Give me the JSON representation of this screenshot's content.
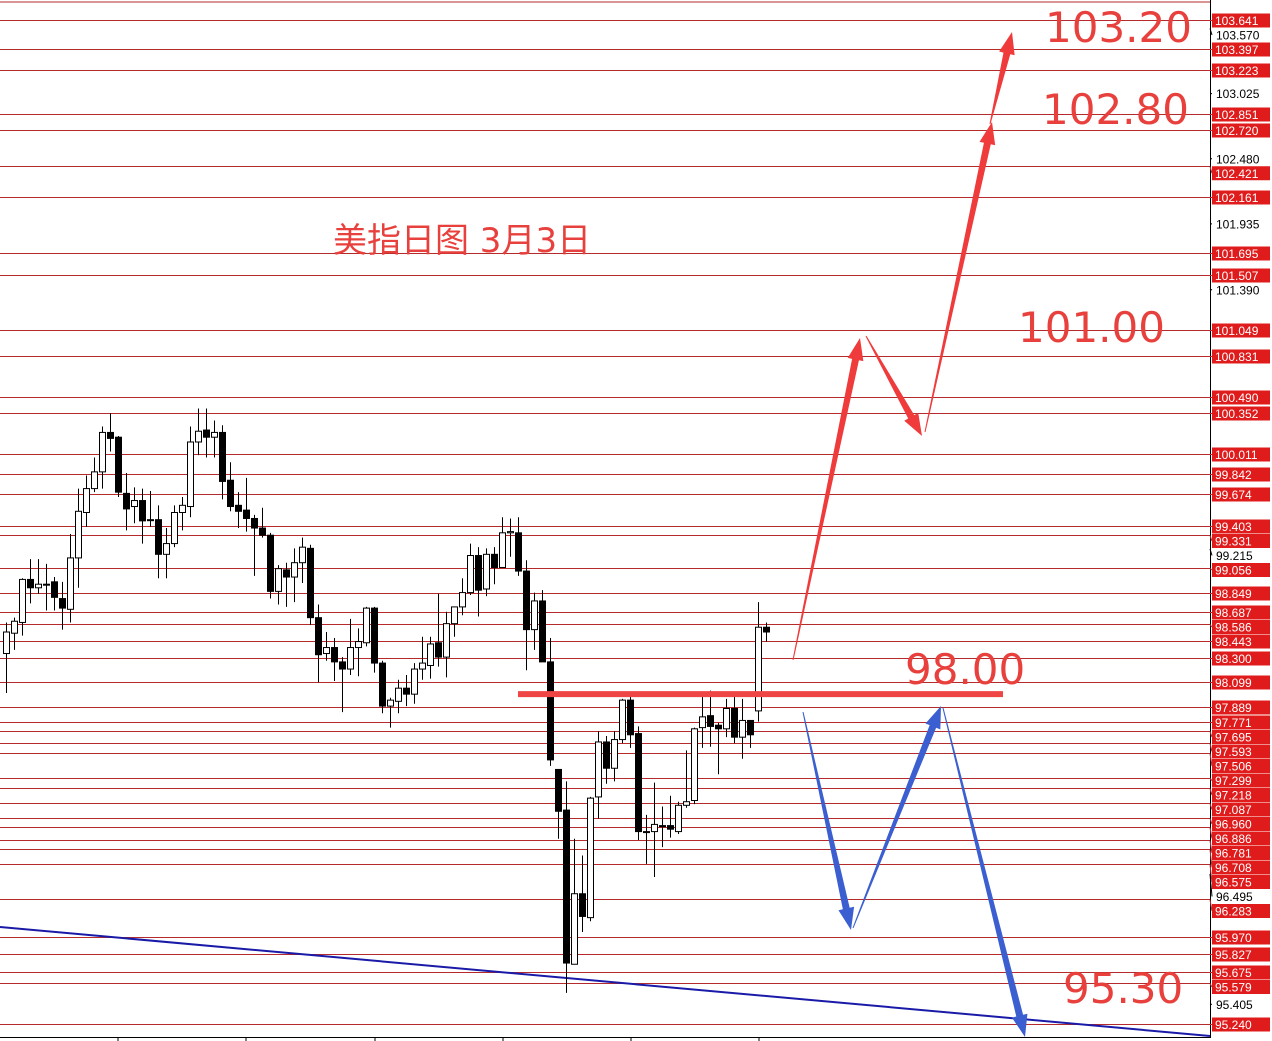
{
  "chart_data": {
    "type": "candlestick",
    "title": "美指日图  3月3日",
    "ylim": [
      95.24,
      103.641
    ],
    "colors": {
      "level_line": "#b52a2a",
      "level_label_bg": "#e01b1b",
      "up_arrow": "#ef3b3b",
      "down_arrow": "#3b5fd0",
      "trend_line": "#1a1aa8",
      "key_level": "#f04545"
    },
    "axis_ticks": [
      "103.570",
      "103.025",
      "102.480",
      "101.935",
      "101.390",
      "99.215",
      "96.495",
      "95.405"
    ],
    "levels": [
      "99.331",
      "97.771",
      "97.695",
      "97.506",
      "97.218",
      "96.960",
      "96.708",
      "95.675",
      "103.641",
      "103.397",
      "103.223",
      "102.851",
      "102.720",
      "102.421",
      "102.161",
      "101.695",
      "101.507",
      "101.049",
      "100.831",
      "100.490",
      "100.352",
      "100.011",
      "99.842",
      "99.674",
      "99.403",
      "99.056",
      "98.849",
      "98.687",
      "98.586",
      "98.443",
      "98.300",
      "98.099",
      "97.889",
      "97.593",
      "97.299",
      "97.087",
      "96.886",
      "96.781",
      "96.575",
      "96.283",
      "95.970",
      "95.827",
      "95.579",
      "95.240"
    ],
    "key_level": {
      "value": 98.0,
      "label": "98.00"
    },
    "targets": [
      {
        "label": "103.20",
        "value": 103.2
      },
      {
        "label": "102.80",
        "value": 102.8
      },
      {
        "label": "101.00",
        "value": 101.0
      },
      {
        "label": "95.30",
        "value": 95.3
      }
    ],
    "candles_ohlc": [
      [
        98.34,
        98.6,
        98.01,
        98.52
      ],
      [
        98.51,
        98.64,
        98.37,
        98.61
      ],
      [
        98.6,
        98.97,
        98.49,
        98.96
      ],
      [
        98.96,
        99.13,
        98.76,
        98.89
      ],
      [
        98.89,
        99.13,
        98.84,
        98.92
      ],
      [
        98.92,
        99.09,
        98.7,
        98.92
      ],
      [
        98.94,
        98.98,
        98.7,
        98.81
      ],
      [
        98.8,
        98.94,
        98.54,
        98.72
      ],
      [
        98.71,
        99.34,
        98.6,
        99.14
      ],
      [
        99.14,
        99.72,
        98.89,
        99.53
      ],
      [
        99.52,
        99.83,
        99.4,
        99.72
      ],
      [
        99.72,
        99.98,
        99.69,
        99.86
      ],
      [
        99.86,
        100.24,
        99.72,
        100.19
      ],
      [
        100.19,
        100.35,
        100.03,
        100.14
      ],
      [
        100.15,
        100.16,
        99.65,
        99.69
      ],
      [
        99.68,
        99.85,
        99.37,
        99.55
      ],
      [
        99.57,
        99.73,
        99.43,
        99.62
      ],
      [
        99.62,
        99.72,
        99.26,
        99.45
      ],
      [
        99.46,
        99.7,
        99.4,
        99.46
      ],
      [
        99.46,
        99.58,
        98.97,
        99.17
      ],
      [
        99.17,
        99.39,
        98.97,
        99.26
      ],
      [
        99.26,
        99.58,
        99.23,
        99.52
      ],
      [
        99.52,
        99.65,
        99.37,
        99.58
      ],
      [
        99.57,
        100.24,
        99.48,
        100.11
      ],
      [
        100.11,
        100.39,
        100.0,
        100.2
      ],
      [
        100.21,
        100.39,
        99.98,
        100.15
      ],
      [
        100.15,
        100.29,
        99.98,
        100.19
      ],
      [
        100.19,
        100.25,
        99.63,
        99.78
      ],
      [
        99.79,
        99.94,
        99.53,
        99.57
      ],
      [
        99.58,
        99.69,
        99.39,
        99.53
      ],
      [
        99.54,
        99.81,
        99.36,
        99.47
      ],
      [
        99.47,
        99.5,
        98.99,
        99.39
      ],
      [
        99.39,
        99.56,
        99.31,
        99.33
      ],
      [
        99.33,
        99.35,
        98.8,
        98.86
      ],
      [
        98.86,
        99.08,
        98.75,
        99.05
      ],
      [
        99.04,
        99.1,
        98.73,
        98.98
      ],
      [
        98.98,
        99.22,
        98.77,
        99.1
      ],
      [
        99.1,
        99.31,
        98.93,
        99.23
      ],
      [
        99.22,
        99.25,
        98.58,
        98.64
      ],
      [
        98.64,
        98.75,
        98.1,
        98.33
      ],
      [
        98.34,
        98.52,
        98.28,
        98.39
      ],
      [
        98.39,
        98.47,
        98.11,
        98.27
      ],
      [
        98.27,
        98.31,
        97.85,
        98.21
      ],
      [
        98.21,
        98.63,
        98.16,
        98.39
      ],
      [
        98.39,
        98.55,
        98.15,
        98.44
      ],
      [
        98.43,
        98.73,
        98.4,
        98.72
      ],
      [
        98.72,
        98.73,
        98.18,
        98.26
      ],
      [
        98.26,
        98.28,
        97.84,
        97.9
      ],
      [
        97.9,
        97.97,
        97.72,
        97.95
      ],
      [
        97.94,
        98.12,
        97.84,
        98.05
      ],
      [
        98.05,
        98.16,
        97.9,
        98.0
      ],
      [
        98.0,
        98.26,
        97.92,
        98.21
      ],
      [
        98.21,
        98.48,
        98.12,
        98.26
      ],
      [
        98.24,
        98.48,
        98.13,
        98.42
      ],
      [
        98.43,
        98.84,
        98.23,
        98.31
      ],
      [
        98.31,
        98.69,
        98.14,
        98.59
      ],
      [
        98.59,
        98.73,
        98.48,
        98.73
      ],
      [
        98.73,
        98.97,
        98.66,
        98.85
      ],
      [
        98.85,
        99.26,
        98.83,
        99.16
      ],
      [
        99.16,
        99.23,
        98.65,
        98.87
      ],
      [
        98.88,
        99.22,
        98.82,
        99.17
      ],
      [
        99.17,
        99.23,
        98.92,
        99.06
      ],
      [
        99.06,
        99.48,
        99.06,
        99.35
      ],
      [
        99.35,
        99.47,
        99.15,
        99.36
      ],
      [
        99.35,
        99.48,
        98.99,
        99.03
      ],
      [
        99.03,
        99.12,
        98.2,
        98.54
      ],
      [
        98.54,
        98.85,
        98.37,
        98.78
      ],
      [
        98.78,
        98.87,
        98.27,
        98.27
      ],
      [
        98.27,
        98.47,
        97.4,
        97.45
      ],
      [
        97.37,
        97.37,
        96.79,
        97.02
      ],
      [
        97.03,
        97.27,
        95.5,
        95.75
      ],
      [
        95.74,
        96.79,
        95.74,
        96.33
      ],
      [
        96.33,
        96.65,
        96.01,
        96.14
      ],
      [
        96.13,
        97.14,
        96.1,
        97.13
      ],
      [
        97.14,
        97.69,
        96.96,
        97.6
      ],
      [
        97.6,
        97.65,
        97.25,
        97.38
      ],
      [
        97.38,
        97.69,
        97.27,
        97.62
      ],
      [
        97.62,
        97.96,
        97.59,
        97.95
      ],
      [
        97.95,
        98.0,
        97.55,
        97.66
      ],
      [
        97.67,
        97.73,
        96.78,
        96.85
      ],
      [
        96.85,
        96.99,
        96.58,
        96.85
      ],
      [
        96.85,
        97.26,
        96.47,
        96.91
      ],
      [
        96.9,
        97.06,
        96.72,
        96.9
      ],
      [
        96.9,
        97.15,
        96.8,
        96.87
      ],
      [
        96.85,
        97.1,
        96.83,
        97.07
      ],
      [
        97.07,
        97.53,
        97.05,
        97.1
      ],
      [
        97.11,
        97.72,
        97.08,
        97.71
      ],
      [
        97.72,
        98.02,
        97.55,
        97.81
      ],
      [
        97.82,
        98.03,
        97.56,
        97.73
      ],
      [
        97.74,
        97.76,
        97.33,
        97.71
      ],
      [
        97.71,
        97.96,
        97.64,
        97.88
      ],
      [
        97.88,
        97.98,
        97.59,
        97.64
      ],
      [
        97.64,
        97.96,
        97.46,
        97.78
      ],
      [
        97.78,
        97.78,
        97.55,
        97.66
      ],
      [
        97.86,
        98.77,
        97.77,
        98.56
      ],
      [
        98.56,
        98.6,
        98.44,
        98.52
      ]
    ]
  }
}
